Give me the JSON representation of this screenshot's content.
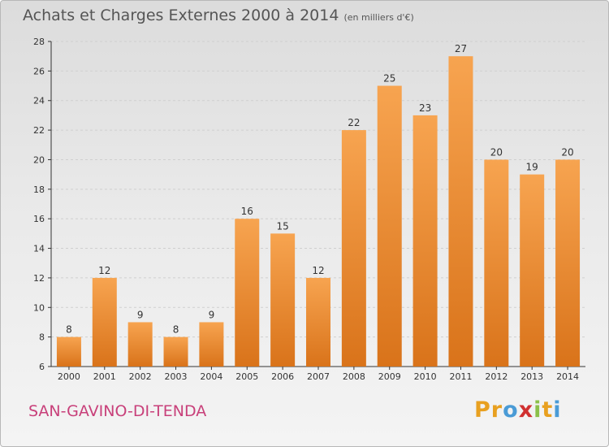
{
  "header": {
    "title": "Achats et Charges Externes 2000 à 2014",
    "subtitle": "(en milliers d'€)"
  },
  "footer": {
    "commune": "SAN-GAVINO-DI-TENDA",
    "logo_letters": [
      "P",
      "r",
      "o",
      "x",
      "i",
      "t",
      "i"
    ],
    "logo_colors": [
      "#e8a020",
      "#e8a020",
      "#4a9bd6",
      "#d03030",
      "#8cc04a",
      "#e8a020",
      "#4a9bd6"
    ]
  },
  "colors": {
    "bar_top": "#f7a450",
    "bar_bottom": "#d9731a",
    "grid": "#cfcfcf",
    "axis": "#333333"
  },
  "chart_data": {
    "type": "bar",
    "categories": [
      "2000",
      "2001",
      "2002",
      "2003",
      "2004",
      "2005",
      "2006",
      "2007",
      "2008",
      "2009",
      "2010",
      "2011",
      "2012",
      "2013",
      "2014"
    ],
    "values": [
      8,
      12,
      9,
      8,
      9,
      16,
      15,
      12,
      22,
      25,
      23,
      27,
      20,
      19,
      20
    ],
    "title": "Achats et Charges Externes 2000 à 2014",
    "subtitle": "(en milliers d'€)",
    "ylim": [
      6,
      28
    ],
    "yticks": [
      6,
      8,
      10,
      12,
      14,
      16,
      18,
      20,
      22,
      24,
      26,
      28
    ],
    "grid": true,
    "data_labels": true
  }
}
